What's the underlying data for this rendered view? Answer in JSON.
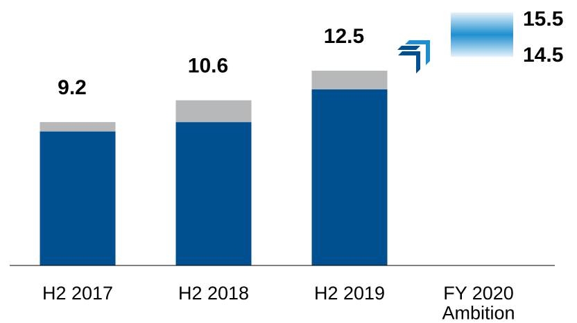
{
  "chart_data": {
    "type": "bar",
    "stacked": true,
    "categories": [
      "H2 2017",
      "H2 2018",
      "H2 2019",
      "FY 2020\nAmbition"
    ],
    "series": [
      {
        "color": "#004f90",
        "values": [
          8.6,
          9.2,
          11.3,
          null
        ]
      },
      {
        "color": "#b7b8ba",
        "values": [
          0.6,
          1.4,
          1.2,
          null
        ]
      }
    ],
    "totals": [
      9.2,
      10.6,
      12.5,
      null
    ],
    "ambition": {
      "high": 15.5,
      "low": 14.5
    },
    "ylim": [
      0,
      16.5
    ]
  }
}
